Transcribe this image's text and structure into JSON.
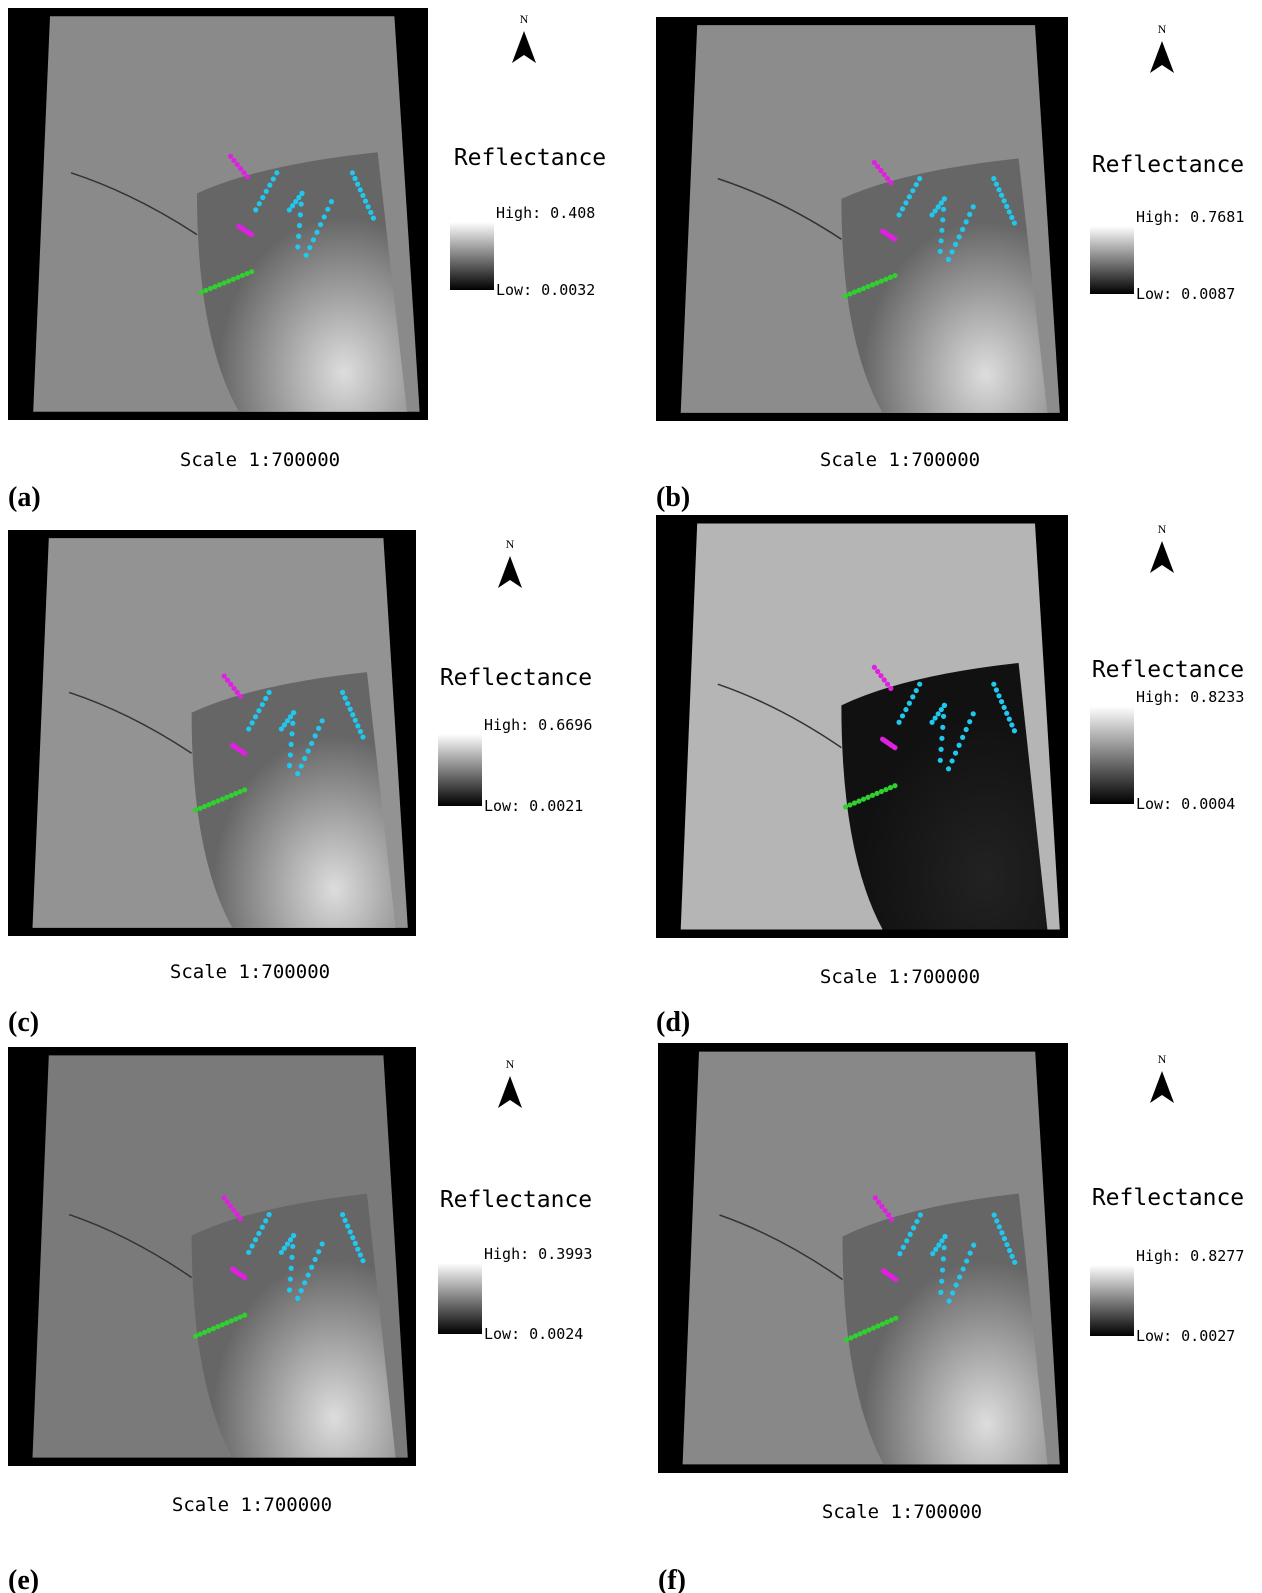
{
  "panels": [
    {
      "label": "(a)",
      "north": "N",
      "legend_title": "Reflectance",
      "high": "High: 0.408",
      "low": "Low: 0.0032",
      "scale": "Scale 1:700000"
    },
    {
      "label": "(b)",
      "north": "N",
      "legend_title": "Reflectance",
      "high": "High: 0.7681",
      "low": "Low: 0.0087",
      "scale": "Scale 1:700000"
    },
    {
      "label": "(c)",
      "north": "N",
      "legend_title": "Reflectance",
      "high": "High: 0.6696",
      "low": "Low: 0.0021",
      "scale": "Scale 1:700000"
    },
    {
      "label": "(d)",
      "north": "N",
      "legend_title": "Reflectance",
      "high": "High: 0.8233",
      "low": "Low: 0.0004",
      "scale": "Scale 1:700000"
    },
    {
      "label": "(e)",
      "north": "N",
      "legend_title": "Reflectance",
      "high": "High: 0.3993",
      "low": "Low: 0.0024",
      "scale": "Scale 1:700000"
    },
    {
      "label": "(f)",
      "north": "N",
      "legend_title": "Reflectance",
      "high": "High: 0.8277",
      "low": "Low: 0.0027",
      "scale": "Scale 1:700000"
    }
  ]
}
